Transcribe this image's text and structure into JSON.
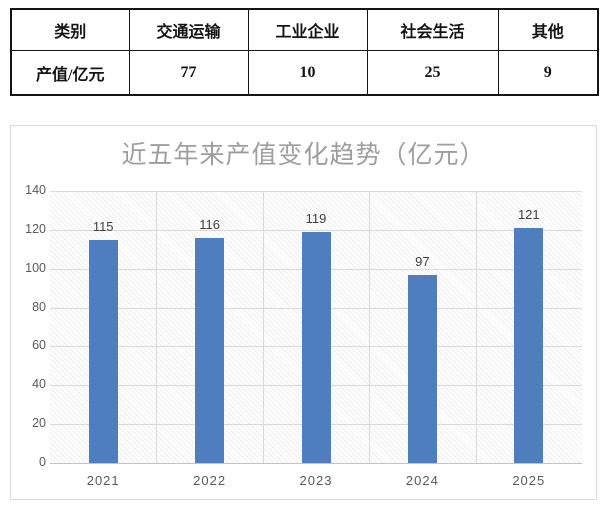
{
  "table": {
    "header_row": [
      "类别",
      "交通运输",
      "工业企业",
      "社会生活",
      "其他"
    ],
    "value_row": [
      "产值/亿元",
      "77",
      "10",
      "25",
      "9"
    ]
  },
  "chart_data": {
    "type": "bar",
    "title": "近五年来产值变化趋势（亿元）",
    "categories": [
      "2021",
      "2022",
      "2023",
      "2024",
      "2025"
    ],
    "values": [
      115,
      116,
      119,
      97,
      121
    ],
    "data_labels": [
      "115",
      "116",
      "119",
      "97",
      "121"
    ],
    "xlabel": "",
    "ylabel": "",
    "ylim": [
      0,
      140
    ],
    "yticks": [
      0,
      20,
      40,
      60,
      80,
      100,
      120,
      140
    ],
    "grid": true,
    "legend": false,
    "plot_background": "hatched-diagonal"
  },
  "colors": {
    "bar_fill": "#4e7ebe",
    "chart_title_text": "#9e9e9e",
    "axis_tick_text": "#595959",
    "data_label_text": "#404040",
    "gridline": "#d9d9d9",
    "chart_border": "#d9d9d9",
    "table_border": "#141414",
    "table_text": "#141414"
  }
}
